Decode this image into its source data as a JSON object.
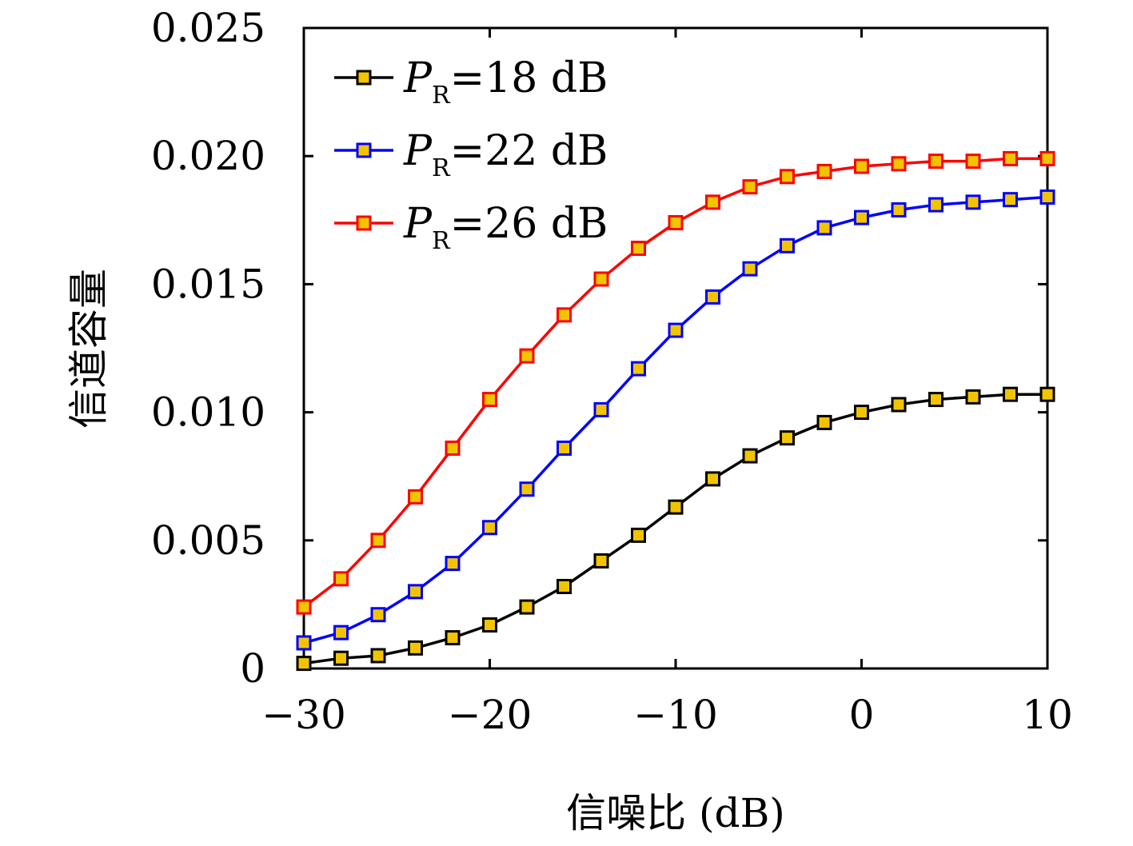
{
  "chart_data": {
    "type": "line",
    "title": "",
    "xlabel": "信噪比 (dB)",
    "ylabel": "信道容量",
    "xlim": [
      -30,
      10
    ],
    "ylim": [
      0,
      0.025
    ],
    "x_ticks": [
      -30,
      -20,
      -10,
      0,
      10
    ],
    "x_tick_labels": [
      "−30",
      "−20",
      "−10",
      "0",
      "10"
    ],
    "y_ticks": [
      0,
      0.005,
      0.01,
      0.015,
      0.02,
      0.025
    ],
    "y_tick_labels": [
      "0",
      "0.005",
      "0.010",
      "0.015",
      "0.020",
      "0.025"
    ],
    "grid": false,
    "legend_position": "top-left",
    "marker": "square",
    "marker_fill": "#f2c400",
    "x": [
      -30,
      -28,
      -26,
      -24,
      -22,
      -20,
      -18,
      -16,
      -14,
      -12,
      -10,
      -8,
      -6,
      -4,
      -2,
      0,
      2,
      4,
      6,
      8,
      10
    ],
    "series": [
      {
        "name_var": "P",
        "name_sub": "R",
        "name_rest": "=18 dB",
        "color": "#000000",
        "values": [
          0.0002,
          0.0004,
          0.0005,
          0.0008,
          0.0012,
          0.0017,
          0.0024,
          0.0032,
          0.0042,
          0.0052,
          0.0063,
          0.0074,
          0.0083,
          0.009,
          0.0096,
          0.01,
          0.0103,
          0.0105,
          0.0106,
          0.0107,
          0.0107
        ]
      },
      {
        "name_var": "P",
        "name_sub": "R",
        "name_rest": "=22 dB",
        "color": "#0000ff",
        "values": [
          0.001,
          0.0014,
          0.0021,
          0.003,
          0.0041,
          0.0055,
          0.007,
          0.0086,
          0.0101,
          0.0117,
          0.0132,
          0.0145,
          0.0156,
          0.0165,
          0.0172,
          0.0176,
          0.0179,
          0.0181,
          0.0182,
          0.0183,
          0.0184
        ]
      },
      {
        "name_var": "P",
        "name_sub": "R",
        "name_rest": "=26 dB",
        "color": "#ff0000",
        "values": [
          0.0024,
          0.0035,
          0.005,
          0.0067,
          0.0086,
          0.0105,
          0.0122,
          0.0138,
          0.0152,
          0.0164,
          0.0174,
          0.0182,
          0.0188,
          0.0192,
          0.0194,
          0.0196,
          0.0197,
          0.0198,
          0.0198,
          0.0199,
          0.0199
        ]
      }
    ]
  }
}
